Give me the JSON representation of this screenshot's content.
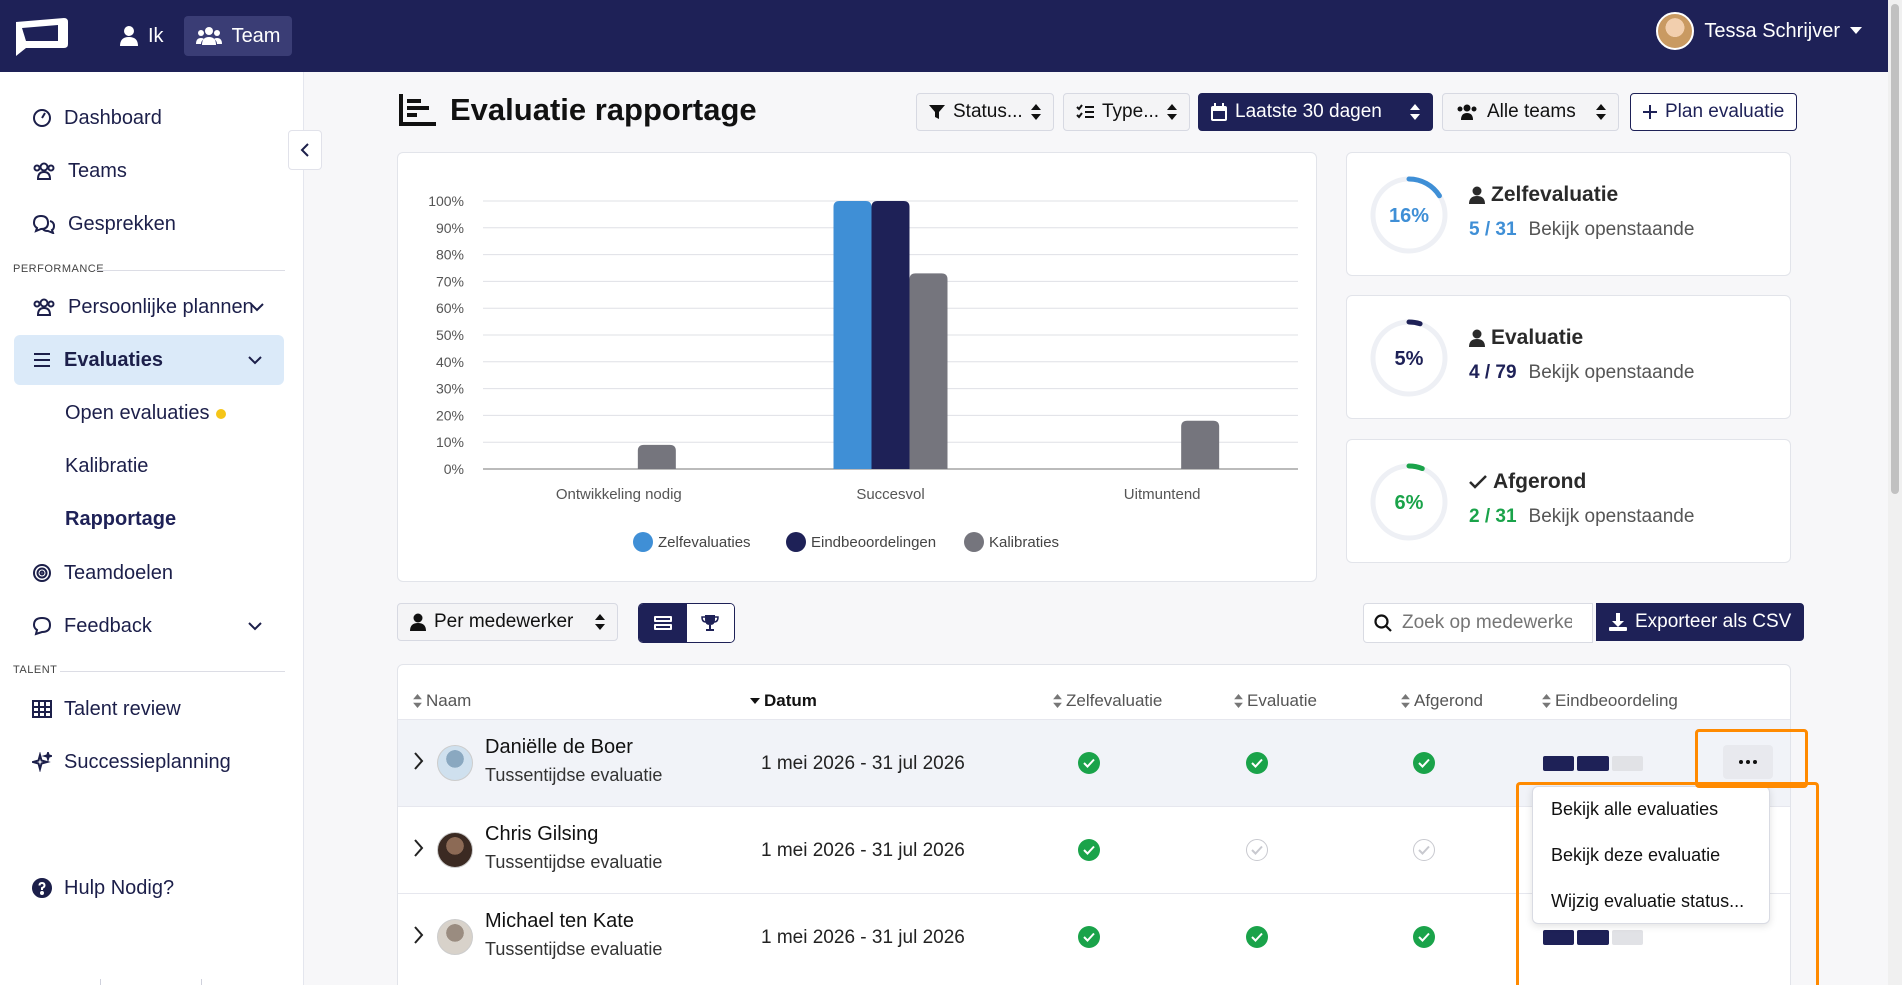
{
  "topbar": {
    "nav": [
      {
        "label": "Ik"
      },
      {
        "label": "Team"
      }
    ],
    "user_name": "Tessa Schrijver"
  },
  "sidebar": {
    "items": {
      "dashboard": "Dashboard",
      "teams": "Teams",
      "gesprekken": "Gesprekken",
      "persoonlijke_plannen": "Persoonlijke plannen",
      "evaluaties": "Evaluaties",
      "teamdoelen": "Teamdoelen",
      "feedback": "Feedback",
      "talent_review": "Talent review",
      "successieplanning": "Successieplanning",
      "hulp": "Hulp Nodig?"
    },
    "sub_items": {
      "open": "Open evaluaties",
      "kalibratie": "Kalibratie",
      "rapportage": "Rapportage"
    },
    "sections": {
      "performance": "PERFORMANCE",
      "talent": "TALENT"
    }
  },
  "page": {
    "title": "Evaluatie rapportage",
    "filters": {
      "status": "Status...",
      "type": "Type...",
      "period": "Laatste 30 dagen",
      "teams": "Alle teams",
      "plan": "Plan evaluatie"
    }
  },
  "chart_data": {
    "type": "bar",
    "categories": [
      "Ontwikkeling nodig",
      "Succesvol",
      "Uitmuntend"
    ],
    "series": [
      {
        "name": "Zelfevaluaties",
        "values": [
          0,
          100,
          0
        ],
        "color": "#3f8fd6"
      },
      {
        "name": "Eindbeoordelingen",
        "values": [
          0,
          100,
          0
        ],
        "color": "#1e2157"
      },
      {
        "name": "Kalibraties",
        "values": [
          9,
          73,
          18
        ],
        "color": "#75757d"
      }
    ],
    "yticks": [
      "0%",
      "10%",
      "20%",
      "30%",
      "40%",
      "50%",
      "60%",
      "70%",
      "80%",
      "90%",
      "100%"
    ],
    "ylim": [
      0,
      100
    ],
    "legend": "bottom"
  },
  "stats": [
    {
      "title": "Zelfevaluatie",
      "percent": "16%",
      "fraction": 0.16,
      "count": "5 / 31",
      "link": "Bekijk openstaande",
      "color": "#3f8fd6",
      "icon": "user-icon"
    },
    {
      "title": "Evaluatie",
      "percent": "5%",
      "fraction": 0.05,
      "count": "4 / 79",
      "link": "Bekijk openstaande",
      "color": "#1e2157",
      "icon": "user-tie-icon"
    },
    {
      "title": "Afgerond",
      "percent": "6%",
      "fraction": 0.06,
      "count": "2 / 31",
      "link": "Bekijk openstaande",
      "color": "#1aa34a",
      "icon": "check-icon"
    }
  ],
  "table_controls": {
    "group_by": "Per medewerker",
    "search_placeholder": "Zoek op medewerker",
    "export": "Exporteer als CSV"
  },
  "table": {
    "columns": [
      "Naam",
      "Datum",
      "Zelfevaluatie",
      "Evaluatie",
      "Afgerond",
      "Eindbeoordeling"
    ],
    "rows": [
      {
        "name": "Daniëlle de Boer",
        "type": "Tussentijdse evaluatie",
        "date": "1 mei 2026 - 31 jul 2026",
        "zelf": true,
        "eval": true,
        "afgerond": true,
        "score": 2
      },
      {
        "name": "Chris Gilsing",
        "type": "Tussentijdse evaluatie",
        "date": "1 mei 2026 - 31 jul 2026",
        "zelf": true,
        "eval": false,
        "afgerond": false,
        "score": 0
      },
      {
        "name": "Michael ten Kate",
        "type": "Tussentijdse evaluatie",
        "date": "1 mei 2026 - 31 jul 2026",
        "zelf": true,
        "eval": true,
        "afgerond": true,
        "score": 2
      }
    ]
  },
  "row_menu": [
    "Bekijk alle evaluaties",
    "Bekijk deze evaluatie",
    "Wijzig evaluatie status..."
  ]
}
